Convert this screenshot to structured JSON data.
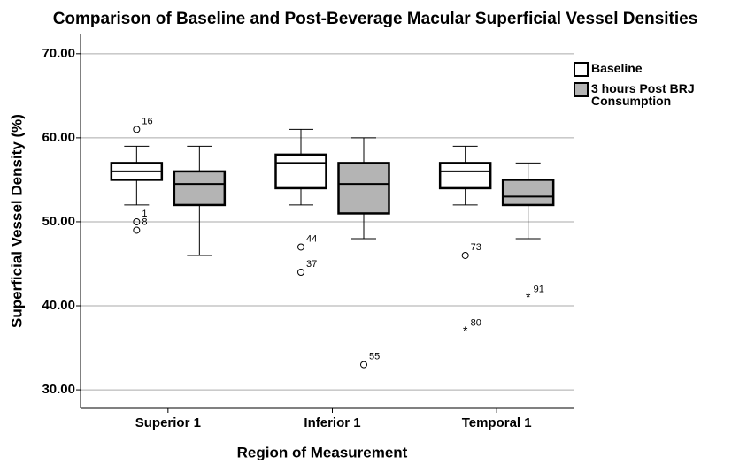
{
  "chart_data": {
    "type": "box",
    "title": "Comparison of Baseline and Post-Beverage Macular Superficial Vessel Densities",
    "xlabel": "Region of Measurement",
    "ylabel": "Superficial Vessel Density (%)",
    "categories": [
      "Superior 1",
      "Inferior 1",
      "Temporal 1"
    ],
    "ylim": [
      27.8,
      72.4
    ],
    "yticks": [
      {
        "value": 30,
        "label": "30.00"
      },
      {
        "value": 40,
        "label": "40.00"
      },
      {
        "value": 50,
        "label": "50.00"
      },
      {
        "value": 60,
        "label": "60.00"
      },
      {
        "value": 70,
        "label": "70.00"
      }
    ],
    "grid": true,
    "legend": "right",
    "series": [
      {
        "name": "Baseline",
        "color": "#ffffff",
        "boxes": [
          {
            "low": 52,
            "q1": 55,
            "median": 56,
            "q3": 57,
            "high": 59,
            "outliers": [
              {
                "value": 61,
                "label": "16",
                "marker": "circle"
              },
              {
                "value": 50,
                "label": "1",
                "marker": "circle"
              },
              {
                "value": 49,
                "label": "8",
                "marker": "circle"
              }
            ]
          },
          {
            "low": 52,
            "q1": 54,
            "median": 57,
            "q3": 58,
            "high": 61,
            "outliers": [
              {
                "value": 47,
                "label": "44",
                "marker": "circle"
              },
              {
                "value": 44,
                "label": "37",
                "marker": "circle"
              }
            ]
          },
          {
            "low": 52,
            "q1": 54,
            "median": 56,
            "q3": 57,
            "high": 59,
            "outliers": [
              {
                "value": 46,
                "label": "73",
                "marker": "circle"
              },
              {
                "value": 37,
                "label": "80",
                "marker": "star"
              }
            ]
          }
        ]
      },
      {
        "name": "3 hours Post BRJ Consumption",
        "color": "#b4b4b4",
        "boxes": [
          {
            "low": 46,
            "q1": 52,
            "median": 54.5,
            "q3": 56,
            "high": 59,
            "outliers": []
          },
          {
            "low": 48,
            "q1": 51,
            "median": 54.5,
            "q3": 57,
            "high": 60,
            "outliers": [
              {
                "value": 33,
                "label": "55",
                "marker": "circle"
              }
            ]
          },
          {
            "low": 48,
            "q1": 52,
            "median": 53,
            "q3": 55,
            "high": 57,
            "outliers": [
              {
                "value": 41,
                "label": "91",
                "marker": "star"
              }
            ]
          }
        ]
      }
    ]
  }
}
